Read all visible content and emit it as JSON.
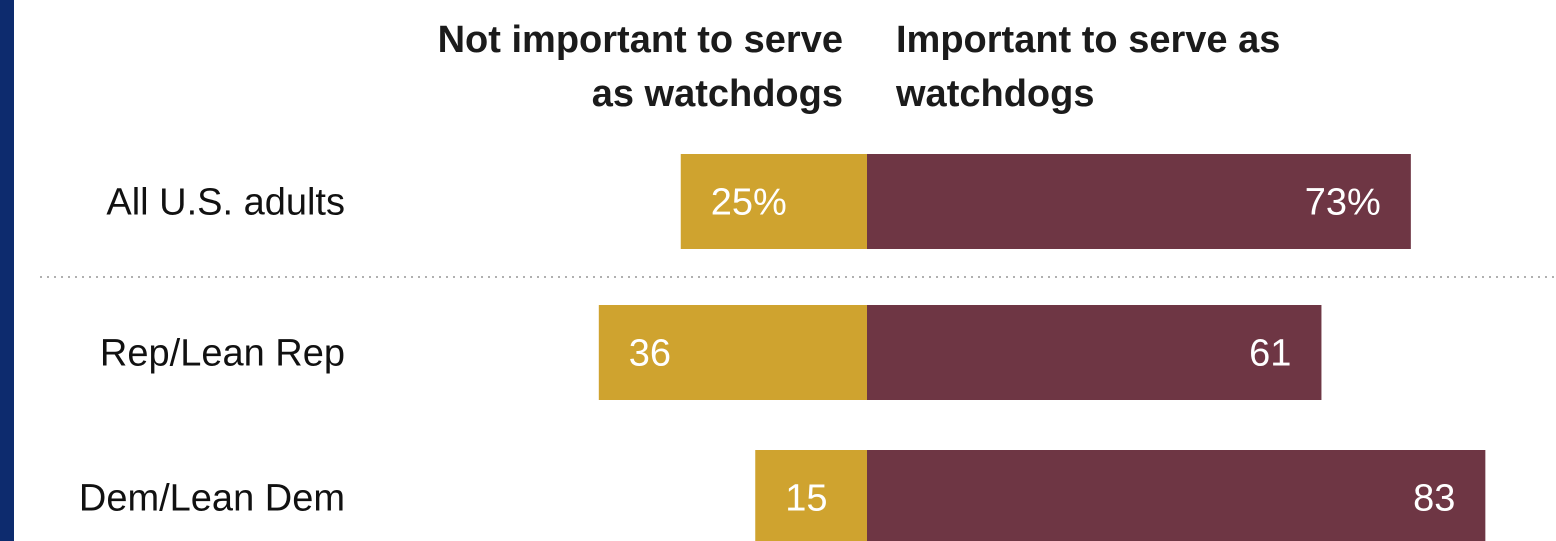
{
  "chart_data": {
    "type": "bar",
    "orientation": "horizontal-diverging",
    "categories": [
      "All U.S. adults",
      "Rep/Lean Rep",
      "Dem/Lean Dem"
    ],
    "series": [
      {
        "name": "Not important to serve as watchdogs",
        "values": [
          25,
          36,
          15
        ],
        "labels": [
          "25%",
          "36",
          "15"
        ],
        "color": "#cfa32f"
      },
      {
        "name": "Important to serve as watchdogs",
        "values": [
          73,
          61,
          83
        ],
        "labels": [
          "73%",
          "61",
          "83"
        ],
        "color": "#6e3644"
      }
    ],
    "headers": {
      "left": [
        "Not important to serve",
        "as watchdogs"
      ],
      "right": [
        "Important to serve as",
        "watchdogs"
      ]
    },
    "divider": "dotted line after All U.S. adults",
    "grid": false,
    "legend": "column headers above bars"
  },
  "colors": {
    "frame": "#0d2b6e",
    "not_important": "#cfa32f",
    "important": "#6e3644",
    "divider": "#b0b0b0"
  }
}
